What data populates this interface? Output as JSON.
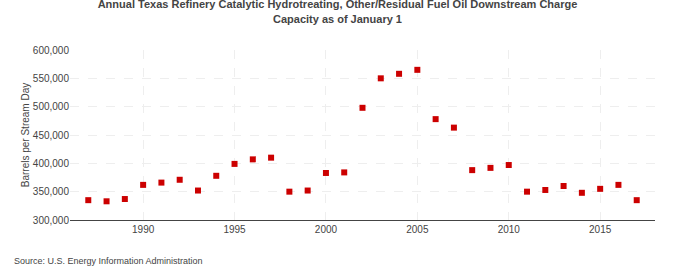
{
  "chart_data": {
    "type": "scatter",
    "title": "Annual Texas Refinery Catalytic Hydrotreating, Other/Residual Fuel Oil Downstream Charge\nCapacity as of January 1",
    "ylabel": "Barrels per Stream Day",
    "annotations": [
      "Source: U.S. Energy Information Administration"
    ],
    "x": [
      1987,
      1988,
      1989,
      1990,
      1991,
      1992,
      1993,
      1994,
      1995,
      1996,
      1997,
      1998,
      1999,
      2000,
      2001,
      2002,
      2003,
      2004,
      2005,
      2006,
      2007,
      2008,
      2009,
      2010,
      2011,
      2012,
      2013,
      2014,
      2015,
      2016,
      2017
    ],
    "values": [
      335000,
      333000,
      337000,
      362000,
      366000,
      371000,
      352000,
      378000,
      399000,
      407000,
      410000,
      350000,
      352000,
      383000,
      384000,
      498000,
      550000,
      558000,
      565000,
      478000,
      463000,
      388000,
      392000,
      397000,
      350000,
      353000,
      360000,
      348000,
      355000,
      362000,
      335000
    ],
    "color": "#cc0000",
    "marker": "square",
    "xlim": [
      1986,
      2018
    ],
    "xticks": [
      1990,
      1995,
      2000,
      2005,
      2010,
      2015
    ],
    "ylim": [
      300000,
      600000
    ],
    "yticks": [
      {
        "value": 300000,
        "label": "300,000"
      },
      {
        "value": 350000,
        "label": "350,000"
      },
      {
        "value": 400000,
        "label": "400,000"
      },
      {
        "value": 450000,
        "label": "450,000"
      },
      {
        "value": 500000,
        "label": "500,000"
      },
      {
        "value": 550000,
        "label": "550,000"
      },
      {
        "value": 600000,
        "label": "600,000"
      }
    ],
    "grid": true
  }
}
